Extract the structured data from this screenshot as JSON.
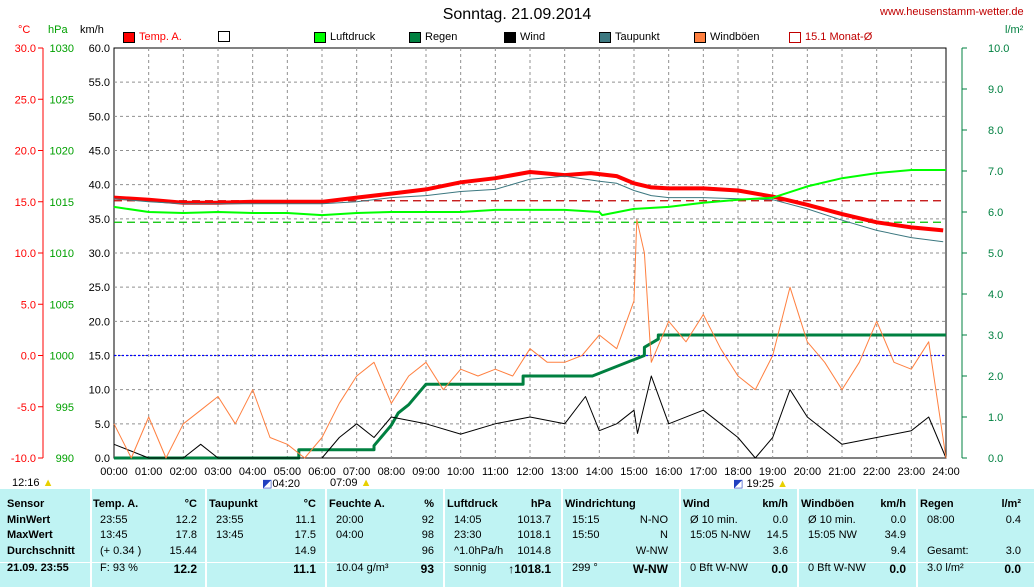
{
  "site": "www.heusenstamm-wetter.de",
  "title": "Sonntag. 21.09.2014",
  "units": {
    "temp": "°C",
    "press": "hPa",
    "wind": "km/h",
    "rain": "l/m²"
  },
  "legend": [
    {
      "label": "Temp. A.",
      "color": "#ff0000",
      "filled": true
    },
    {
      "label": "",
      "color": "#ffffff",
      "filled": false
    },
    {
      "label": "Luftdruck",
      "color": "#00ff00",
      "filled": true
    },
    {
      "label": "Regen",
      "color": "#008040",
      "filled": true
    },
    {
      "label": "Wind",
      "color": "#000000",
      "filled": true
    },
    {
      "label": "Taupunkt",
      "color": "#3c7880",
      "filled": true
    },
    {
      "label": "Windböen",
      "color": "#ff8040",
      "filled": true
    },
    {
      "label": "15.1 Monat-Ø",
      "color": "#c00000",
      "filled": false
    }
  ],
  "sun": {
    "rise_time": "07:09",
    "set_time": "19:25",
    "moonrise": "04:20",
    "moonset": "12:16"
  },
  "chart_data": {
    "type": "line",
    "x_ticks": [
      "00:00",
      "01:00",
      "02:00",
      "03:00",
      "04:00",
      "05:00",
      "06:00",
      "07:00",
      "08:00",
      "09:00",
      "10:00",
      "11:00",
      "12:00",
      "13:00",
      "14:00",
      "15:00",
      "16:00",
      "17:00",
      "18:00",
      "19:00",
      "20:00",
      "21:00",
      "22:00",
      "23:00",
      "24:00"
    ],
    "axes": {
      "temp": {
        "ticks": [
          "30.0",
          "25.0",
          "20.0",
          "15.0",
          "10.0",
          "5.0",
          "0.0",
          "-5.0",
          "-10.0"
        ],
        "range": [
          -10,
          30
        ],
        "color": "#ff0000"
      },
      "press": {
        "ticks": [
          "1030",
          "1025",
          "1020",
          "1015",
          "1010",
          "1005",
          "1000",
          "995",
          "990"
        ],
        "range": [
          990,
          1030
        ],
        "color": "#00c000"
      },
      "wind": {
        "ticks": [
          "60.0",
          "55.0",
          "50.0",
          "45.0",
          "40.0",
          "35.0",
          "30.0",
          "25.0",
          "20.0",
          "15.0",
          "10.0",
          "5.0",
          "0.0"
        ],
        "range": [
          0,
          60
        ]
      },
      "rain": {
        "ticks": [
          "10.0",
          "9.0",
          "8.0",
          "7.0",
          "6.0",
          "5.0",
          "4.0",
          "3.0",
          "2.0",
          "1.0",
          "0.0"
        ],
        "range": [
          0,
          10
        ],
        "color": "#008040"
      }
    },
    "reference_lines": [
      {
        "name": "15.1 Monat-Ø",
        "axis": "temp",
        "value": 15.1,
        "color": "#c00000",
        "style": "dashed"
      },
      {
        "name": "0 °C",
        "axis": "temp",
        "value": 0,
        "color": "#0000ff",
        "style": "dotted"
      },
      {
        "name": "pressure dashed",
        "axis": "press",
        "value": 1013,
        "color": "#00c000",
        "style": "dashed"
      }
    ],
    "series": [
      {
        "name": "Temp. A.",
        "axis": "temp",
        "color": "#ff0000",
        "width": 4,
        "x": [
          0,
          1,
          2,
          3,
          4,
          5,
          6,
          7,
          8,
          9,
          10,
          11,
          12,
          13,
          13.75,
          14.5,
          15,
          15.5,
          16,
          17,
          18,
          19,
          20,
          21,
          22,
          23,
          23.92
        ],
        "y": [
          15.4,
          15.2,
          14.9,
          14.9,
          15,
          15,
          15,
          15.4,
          15.8,
          16.2,
          16.9,
          17.3,
          17.9,
          17.6,
          17.8,
          17.5,
          16.8,
          16.4,
          16.3,
          16.3,
          16.1,
          15.5,
          14.7,
          13.8,
          13,
          12.5,
          12.2
        ]
      },
      {
        "name": "Taupunkt",
        "axis": "temp",
        "color": "#3c7880",
        "width": 1,
        "x": [
          0,
          1,
          2,
          3,
          4,
          5,
          6,
          7,
          8,
          9,
          10,
          11,
          12,
          13,
          14,
          14.5,
          15,
          15.5,
          16,
          17,
          18,
          19,
          20,
          21,
          22,
          23,
          23.92
        ],
        "y": [
          15.3,
          15,
          14.8,
          14.8,
          14.8,
          14.8,
          14.8,
          15,
          15.4,
          15.6,
          16,
          16.2,
          17.2,
          17.5,
          17,
          16.8,
          16.1,
          15.6,
          15.4,
          15.4,
          15.3,
          15.2,
          14.3,
          13.2,
          12.2,
          11.5,
          11.1
        ]
      },
      {
        "name": "Luftdruck",
        "axis": "press",
        "color": "#00ff00",
        "width": 2,
        "x": [
          0,
          1,
          2,
          3,
          4,
          5,
          6,
          7,
          8,
          9,
          10,
          11,
          12,
          13,
          14,
          14.08,
          15,
          16,
          17,
          18,
          19,
          20,
          21,
          22,
          23,
          23.5,
          24
        ],
        "y": [
          1014.5,
          1014,
          1013.9,
          1014,
          1013.9,
          1013.9,
          1013.7,
          1013.9,
          1014,
          1014,
          1014,
          1014.2,
          1014.2,
          1014.2,
          1014,
          1013.7,
          1014.3,
          1014.5,
          1014.9,
          1015.2,
          1015.4,
          1016.5,
          1017.3,
          1017.8,
          1018.1,
          1018.1,
          1018.1
        ]
      },
      {
        "name": "Regen",
        "axis": "rain",
        "color": "#008040",
        "width": 3,
        "x": [
          0,
          5.33,
          5.33,
          7.5,
          7.5,
          8,
          8.2,
          8.5,
          9,
          9,
          11.8,
          11.8,
          13.8,
          13.8,
          15.3,
          15.3,
          15.7,
          15.7,
          24
        ],
        "y": [
          0,
          0,
          0.2,
          0.2,
          0.3,
          0.8,
          1.1,
          1.3,
          1.8,
          1.8,
          1.8,
          2,
          2,
          2,
          2.5,
          2.7,
          2.9,
          3,
          3
        ]
      },
      {
        "name": "Wind",
        "axis": "wind",
        "color": "#000000",
        "width": 1,
        "x": [
          0,
          1,
          2,
          2.5,
          3,
          4,
          5,
          6,
          6.5,
          7,
          7.5,
          8,
          9,
          10,
          11,
          12,
          13,
          13.6,
          14,
          14.5,
          15,
          15.1,
          15.5,
          16,
          17,
          18,
          18.5,
          19,
          19.5,
          20,
          21,
          22,
          23,
          23.5,
          24
        ],
        "y": [
          2,
          0,
          0,
          2,
          0,
          0,
          0,
          0,
          3,
          5,
          3,
          6,
          5,
          3.5,
          5,
          6,
          5,
          9,
          4,
          5,
          7,
          3.6,
          12,
          5,
          7,
          3,
          0,
          3,
          10,
          6,
          2,
          3,
          4,
          6,
          0
        ]
      },
      {
        "name": "Windböen",
        "axis": "wind",
        "color": "#ff8040",
        "width": 1,
        "x": [
          0,
          0.5,
          1,
          1.5,
          2,
          2.5,
          3,
          3.5,
          4,
          4.5,
          5,
          5.5,
          6,
          6.5,
          7,
          7.5,
          8,
          8.5,
          9,
          9.5,
          10,
          10.5,
          11,
          11.5,
          12,
          12.5,
          13,
          13.5,
          14,
          14.5,
          15,
          15.08,
          15.3,
          15.5,
          16,
          16.5,
          17,
          17.5,
          18,
          18.5,
          19,
          19.5,
          20,
          20.5,
          21,
          21.5,
          22,
          22.5,
          23,
          23.5,
          24
        ],
        "y": [
          5,
          0,
          6,
          0,
          5,
          7,
          9,
          5,
          10,
          3,
          2,
          0,
          3,
          8,
          12,
          14,
          8,
          12,
          14,
          10,
          13,
          12,
          13,
          12,
          16,
          14,
          14,
          15,
          18,
          16,
          23,
          34.9,
          30,
          14,
          20,
          17,
          21,
          16,
          12,
          10,
          15,
          25,
          17,
          14,
          10,
          14,
          20,
          14,
          13,
          17,
          0
        ]
      }
    ]
  },
  "table": {
    "headers": [
      {
        "label": "Sensor",
        "unit": ""
      },
      {
        "label": "Temp. A.",
        "unit": "°C"
      },
      {
        "label": "Taupunkt",
        "unit": "°C"
      },
      {
        "label": "Feuchte A.",
        "unit": "%"
      },
      {
        "label": "Luftdruck",
        "unit": "hPa"
      },
      {
        "label": "Windrichtung",
        "unit": ""
      },
      {
        "label": "Wind",
        "unit": "km/h"
      },
      {
        "label": "Windböen",
        "unit": "km/h"
      },
      {
        "label": "Regen",
        "unit": "l/m²"
      }
    ],
    "rows": [
      {
        "label": "MinWert",
        "cells": [
          [
            "23:55",
            "12.2"
          ],
          [
            "23:55",
            "11.1"
          ],
          [
            "20:00",
            "92"
          ],
          [
            "14:05",
            "1013.7"
          ],
          [
            "15:15",
            "N-NO"
          ],
          [
            "Ø 10 min.",
            "0.0"
          ],
          [
            "Ø 10 min.",
            "0.0"
          ],
          [
            "08:00",
            "0.4"
          ]
        ]
      },
      {
        "label": "MaxWert",
        "cells": [
          [
            "13:45",
            "17.8"
          ],
          [
            "13:45",
            "17.5"
          ],
          [
            "04:00",
            "98"
          ],
          [
            "23:30",
            "1018.1"
          ],
          [
            "15:50",
            "N"
          ],
          [
            "15:05  N-NW",
            "14.5"
          ],
          [
            "15:05  NW",
            "34.9"
          ],
          [
            "",
            ""
          ]
        ]
      },
      {
        "label": "Durchschnitt",
        "cells": [
          [
            "(+ 0.34 )",
            "15.44"
          ],
          [
            "",
            "14.9"
          ],
          [
            "",
            "96"
          ],
          [
            "^1.0hPa/h",
            "1014.8"
          ],
          [
            "",
            "W-NW"
          ],
          [
            "",
            "3.6"
          ],
          [
            "",
            "9.4"
          ],
          [
            "Gesamt:",
            "3.0"
          ]
        ]
      },
      {
        "label": "21.09.  23:55",
        "cells": [
          [
            "F: 93 %",
            "12.2"
          ],
          [
            "",
            "11.1"
          ],
          [
            "10.04 g/m³",
            "93"
          ],
          [
            "sonnig",
            "↑1018.1"
          ],
          [
            "299 °",
            "W-NW"
          ],
          [
            "0 Bft W-NW",
            "0.0"
          ],
          [
            "0 Bft W-NW",
            "0.0"
          ],
          [
            "3.0 l/m²",
            "0.0"
          ]
        ]
      }
    ]
  }
}
